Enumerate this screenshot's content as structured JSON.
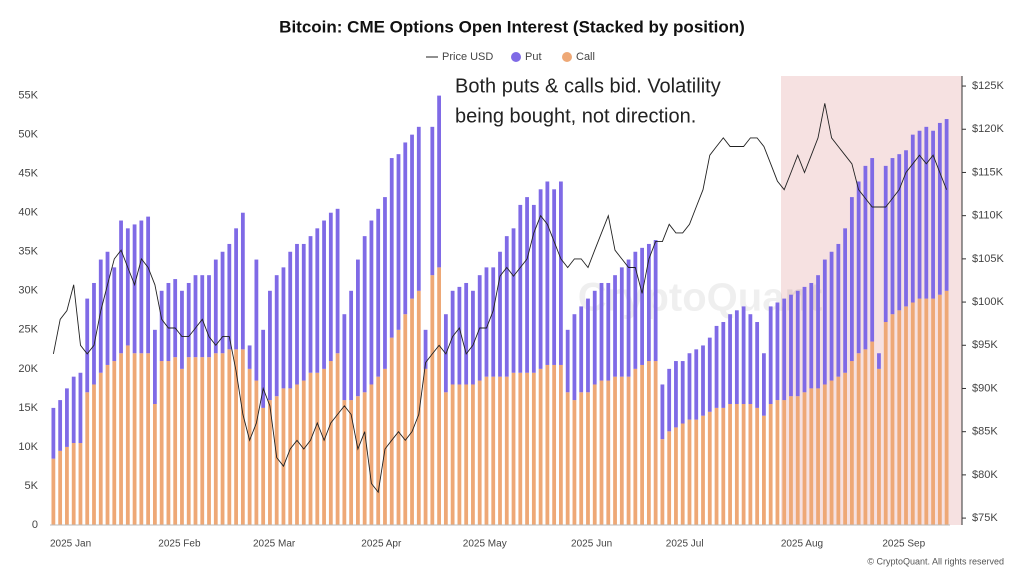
{
  "chart_data": {
    "type": "stacked_bar_line",
    "title": "Bitcoin: CME Options Open Interest (Stacked by position)",
    "annotation": [
      "Both puts & calls bid. Volatility",
      "being bought, not direction."
    ],
    "watermark": "CryptoQuant",
    "footer": "© CryptoQuant. All rights reserved",
    "categories": [
      "2025 Jan",
      null,
      null,
      null,
      null,
      null,
      null,
      null,
      null,
      null,
      null,
      null,
      null,
      null,
      null,
      null,
      "2025 Feb",
      null,
      null,
      null,
      null,
      null,
      null,
      null,
      null,
      null,
      null,
      null,
      null,
      null,
      "2025 Mar",
      null,
      null,
      null,
      null,
      null,
      null,
      null,
      null,
      null,
      null,
      null,
      null,
      null,
      null,
      null,
      "2025 Apr",
      null,
      null,
      null,
      null,
      null,
      null,
      null,
      null,
      null,
      null,
      null,
      null,
      null,
      null,
      "2025 May",
      null,
      null,
      null,
      null,
      null,
      null,
      null,
      null,
      null,
      null,
      null,
      null,
      null,
      null,
      null,
      "2025 Jun",
      null,
      null,
      null,
      null,
      null,
      null,
      null,
      null,
      null,
      null,
      null,
      null,
      null,
      "2025 Jul",
      null,
      null,
      null,
      null,
      null,
      null,
      null,
      null,
      null,
      null,
      null,
      null,
      null,
      null,
      null,
      null,
      "2025 Aug",
      null,
      null,
      null,
      null,
      null,
      null,
      null,
      null,
      null,
      null,
      null,
      null,
      null,
      null,
      "2025 Sep",
      null,
      null,
      null,
      null,
      null,
      null,
      null,
      null,
      null
    ],
    "series": [
      {
        "name": "Price USD",
        "color": "#222222",
        "axis": "y2",
        "kind": "line",
        "values": [
          94000,
          98000,
          99000,
          102000,
          95000,
          94000,
          95000,
          99000,
          102000,
          105000,
          106000,
          104000,
          102000,
          105000,
          104000,
          102000,
          98000,
          97000,
          97000,
          96000,
          96000,
          97000,
          98000,
          96000,
          95000,
          96000,
          96000,
          92000,
          87000,
          84000,
          86000,
          90000,
          88000,
          82000,
          81000,
          83000,
          84000,
          83000,
          84000,
          86000,
          84000,
          86000,
          87000,
          88000,
          87000,
          83000,
          85000,
          79000,
          78000,
          83000,
          84000,
          85000,
          84000,
          85000,
          87000,
          93000,
          94000,
          95000,
          94000,
          96000,
          97000,
          94000,
          95000,
          97000,
          97000,
          99000,
          103000,
          104000,
          103000,
          104000,
          105000,
          108000,
          110000,
          109000,
          107000,
          105000,
          104000,
          105000,
          105000,
          104000,
          106000,
          108000,
          110000,
          106000,
          105000,
          104000,
          104000,
          101000,
          105000,
          107000,
          107000,
          109000,
          108000,
          108000,
          109000,
          111000,
          113000,
          117000,
          118000,
          119000,
          118000,
          118000,
          118000,
          119000,
          119000,
          118000,
          116000,
          114000,
          113000,
          115000,
          117000,
          115000,
          117000,
          119000,
          123000,
          119000,
          118000,
          117000,
          116000,
          113000,
          112000,
          111000,
          111000,
          111000,
          112000,
          113000,
          115000,
          116000,
          117000,
          116000,
          117000,
          115000,
          113000
        ]
      },
      {
        "name": "Put",
        "color": "#7f6ae6",
        "kind": "bar",
        "values": [
          6500,
          6500,
          7500,
          8500,
          9000,
          12000,
          13000,
          14500,
          14500,
          12000,
          17000,
          15000,
          16500,
          17000,
          17500,
          9500,
          9000,
          10000,
          10000,
          10000,
          9500,
          10500,
          10500,
          10500,
          12000,
          13000,
          13500,
          15500,
          17500,
          3000,
          15500,
          10000,
          14000,
          15500,
          15500,
          17500,
          18000,
          17500,
          17500,
          18500,
          19000,
          19000,
          18500,
          11000,
          14000,
          17500,
          20000,
          21000,
          21500,
          22000,
          23000,
          22500,
          22000,
          21000,
          21000,
          5000,
          19000,
          22000,
          10000,
          12000,
          12500,
          13000,
          12000,
          13500,
          14000,
          14000,
          16000,
          18000,
          18500,
          21500,
          22500,
          21500,
          23000,
          23500,
          22500,
          23500,
          8000,
          11000,
          11000,
          12000,
          12000,
          12500,
          12500,
          13000,
          14000,
          15000,
          15000,
          15000,
          15000,
          15500,
          7000,
          8000,
          8500,
          8000,
          8500,
          9000,
          9000,
          9500,
          10500,
          11000,
          11500,
          12000,
          12500,
          11500,
          11000,
          8000,
          12500,
          12500,
          13000,
          13000,
          13500,
          13500,
          13500,
          14500,
          16000,
          16500,
          17000,
          18500,
          21000,
          22000,
          23500,
          23500,
          2000,
          20000,
          20000,
          20000,
          20000,
          21500,
          21500,
          22000,
          21500,
          22000,
          22000
        ]
      },
      {
        "name": "Call",
        "color": "#eea876",
        "kind": "bar",
        "values": [
          8500,
          9500,
          10000,
          10500,
          10500,
          17000,
          18000,
          19500,
          20500,
          21000,
          22000,
          23000,
          22000,
          22000,
          22000,
          15500,
          21000,
          21000,
          21500,
          20000,
          21500,
          21500,
          21500,
          21500,
          22000,
          22000,
          22500,
          22500,
          22500,
          20000,
          18500,
          15000,
          16000,
          16500,
          17500,
          17500,
          18000,
          18500,
          19500,
          19500,
          20000,
          21000,
          22000,
          16000,
          16000,
          16500,
          17000,
          18000,
          19000,
          20000,
          24000,
          25000,
          27000,
          29000,
          30000,
          20000,
          32000,
          33000,
          17000,
          18000,
          18000,
          18000,
          18000,
          18500,
          19000,
          19000,
          19000,
          19000,
          19500,
          19500,
          19500,
          19500,
          20000,
          20500,
          20500,
          20500,
          17000,
          16000,
          17000,
          17000,
          18000,
          18500,
          18500,
          19000,
          19000,
          19000,
          20000,
          20500,
          21000,
          21000,
          11000,
          12000,
          12500,
          13000,
          13500,
          13500,
          14000,
          14500,
          15000,
          15000,
          15500,
          15500,
          15500,
          15500,
          15000,
          14000,
          15500,
          16000,
          16000,
          16500,
          16500,
          17000,
          17500,
          17500,
          18000,
          18500,
          19000,
          19500,
          21000,
          22000,
          22500,
          23500,
          20000,
          26000,
          27000,
          27500,
          28000,
          28500,
          29000,
          29000,
          29000,
          29500,
          30000
        ]
      }
    ],
    "ylim": [
      0,
      57000
    ],
    "yticks": [
      0,
      {
        "value": 5000,
        "label": "5K"
      },
      {
        "value": 10000,
        "label": "10K"
      },
      {
        "value": 15000,
        "label": "15K"
      },
      {
        "value": 20000,
        "label": "20K"
      },
      {
        "value": 25000,
        "label": "25K"
      },
      {
        "value": 30000,
        "label": "30K"
      },
      {
        "value": 35000,
        "label": "35K"
      },
      {
        "value": 40000,
        "label": "40K"
      },
      {
        "value": 45000,
        "label": "45K"
      },
      {
        "value": 50000,
        "label": "50K"
      },
      {
        "value": 55000,
        "label": "55K"
      }
    ],
    "y2lim": [
      74200,
      125700
    ],
    "y2ticks": [
      {
        "value": 75000,
        "label": "$75K"
      },
      {
        "value": 80000,
        "label": "$80K"
      },
      {
        "value": 85000,
        "label": "$85K"
      },
      {
        "value": 90000,
        "label": "$90K"
      },
      {
        "value": 95000,
        "label": "$95K"
      },
      {
        "value": 100000,
        "label": "$100K"
      },
      {
        "value": 105000,
        "label": "$105K"
      },
      {
        "value": 110000,
        "label": "$110K"
      },
      {
        "value": 115000,
        "label": "$115K"
      },
      {
        "value": 120000,
        "label": "$120K"
      },
      {
        "value": 125000,
        "label": "$125K"
      }
    ],
    "grid": false
  }
}
